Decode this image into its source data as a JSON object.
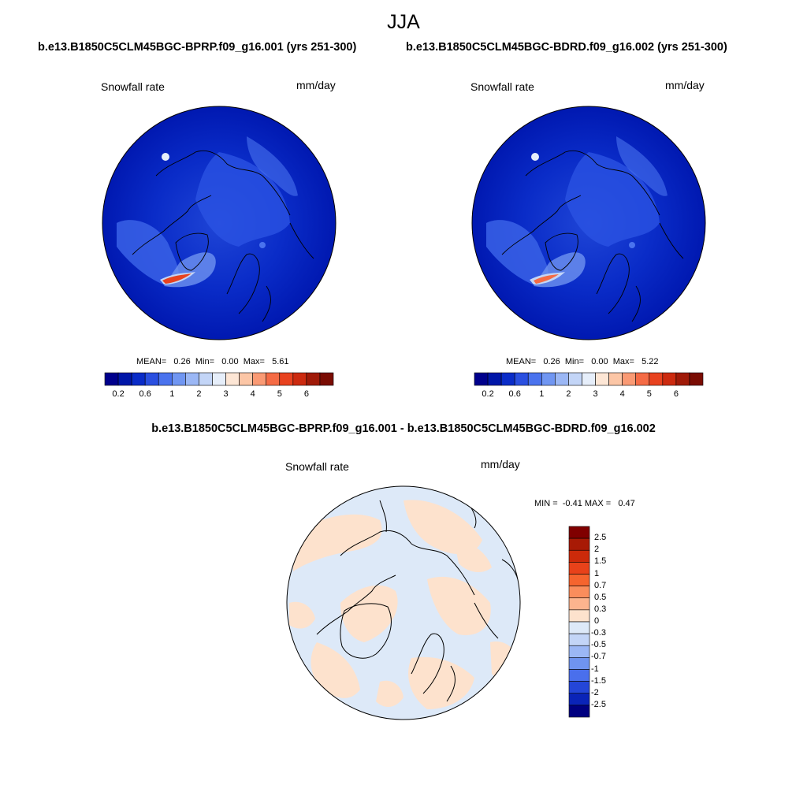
{
  "figure": {
    "title": "JJA"
  },
  "panels": [
    {
      "case_title": "b.e13.B1850C5CLM45BGC-BPRP.f09_g16.001 (yrs 251-300)",
      "variable": "Snowfall rate",
      "units": "mm/day",
      "stats": "MEAN=   0.26  Min=   0.00  Max=   5.61",
      "mean": 0.26,
      "min": 0.0,
      "max": 5.61
    },
    {
      "case_title": "b.e13.B1850C5CLM45BGC-BDRD.f09_g16.002 (yrs 251-300)",
      "variable": "Snowfall rate",
      "units": "mm/day",
      "stats": "MEAN=   0.26  Min=   0.00  Max=   5.22",
      "mean": 0.26,
      "min": 0.0,
      "max": 5.22
    }
  ],
  "diff_panel": {
    "case_title": "b.e13.B1850C5CLM45BGC-BPRP.f09_g16.001 - b.e13.B1850C5CLM45BGC-BDRD.f09_g16.002",
    "variable": "Snowfall rate",
    "units": "mm/day",
    "stats": "MIN =  -0.41 MAX =   0.47",
    "min": -0.41,
    "max": 0.47
  },
  "colorbar_abs": {
    "tick_labels": [
      "0.2",
      "0.6",
      "1",
      "2",
      "3",
      "4",
      "5",
      "6"
    ],
    "colors": [
      "#00008c",
      "#0016a8",
      "#0a2cc8",
      "#2a4fe0",
      "#4a73ee",
      "#7096f2",
      "#9bb7f5",
      "#c3d5f7",
      "#e6eefa",
      "#fde6d5",
      "#fcc6a6",
      "#fa9a74",
      "#f56b45",
      "#e8421f",
      "#cc2a0f",
      "#a01a08",
      "#7a0c03"
    ]
  },
  "colorbar_diff": {
    "tick_labels": [
      "2.5",
      "2",
      "1.5",
      "1",
      "0.7",
      "0.5",
      "0.3",
      "0",
      "-0.3",
      "-0.5",
      "-0.7",
      "-1",
      "-1.5",
      "-2",
      "-2.5"
    ],
    "colors": [
      "#800000",
      "#a81a05",
      "#cc2a0a",
      "#e8421a",
      "#f5642e",
      "#fa8d5c",
      "#fcb48e",
      "#fde2cd",
      "#dde9f8",
      "#c3d5f7",
      "#9bb7f5",
      "#6f94f0",
      "#4a6fec",
      "#2446d8",
      "#0a24b8",
      "#000080"
    ]
  }
}
